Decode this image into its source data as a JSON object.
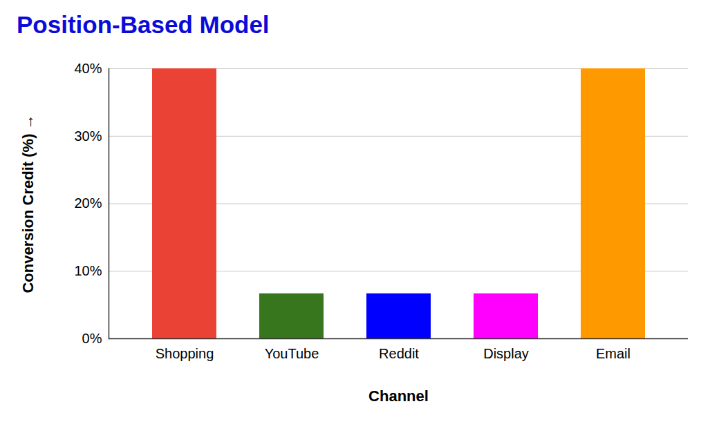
{
  "chart_data": {
    "type": "bar",
    "title": "Position-Based Model",
    "x_label": "Channel",
    "y_label": "Conversion Credit (%)",
    "categories": [
      "Shopping",
      "YouTube",
      "Reddit",
      "Display",
      "Email"
    ],
    "values": [
      40,
      6.67,
      6.67,
      6.67,
      40
    ],
    "colors": [
      "#ea4335",
      "#38761d",
      "#0000ff",
      "#ff00ff",
      "#ff9900"
    ],
    "ylim": [
      0,
      40
    ],
    "yticks": [
      {
        "value": 0,
        "label": "0%"
      },
      {
        "value": 10,
        "label": "10%"
      },
      {
        "value": 20,
        "label": "20%"
      },
      {
        "value": 30,
        "label": "30%"
      },
      {
        "value": 40,
        "label": "40%"
      }
    ],
    "grid": true
  }
}
